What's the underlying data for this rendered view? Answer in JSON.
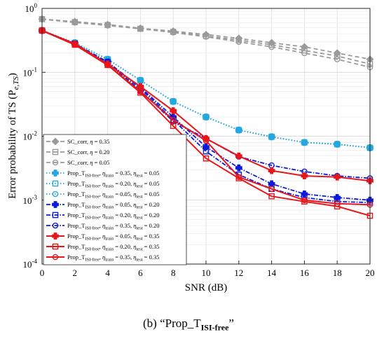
{
  "chart_data": {
    "type": "line",
    "xlabel": "SNR (dB)",
    "ylabel": "Error probability of TS (P",
    "ylabel_sub": "e,TS",
    "ylabel_close": ")",
    "xlim": [
      0,
      20
    ],
    "ylim": [
      0.0001,
      1
    ],
    "yscale": "log",
    "grid": true,
    "legend_position": "bottom-left",
    "x_ticks": [
      0,
      2,
      4,
      6,
      8,
      10,
      12,
      14,
      16,
      18,
      20
    ],
    "x_tick_labels": [
      "0",
      "2",
      "4",
      "6",
      "8",
      "10",
      "12",
      "14",
      "16",
      "18",
      "20"
    ],
    "y_ticks": [
      1,
      0.1,
      0.01,
      0.001,
      0.0001
    ],
    "y_tick_base": "10",
    "y_tick_exponents": [
      "0",
      "-1",
      "-2",
      "-3",
      "-4"
    ],
    "x": [
      0,
      2,
      4,
      6,
      8,
      10,
      12,
      14,
      16,
      18,
      20
    ],
    "series": [
      {
        "label": "SC_corr, η = 0.35",
        "color": "#9a9a9a",
        "dash": "6,4",
        "marker": "diamond",
        "values": [
          0.68,
          0.62,
          0.56,
          0.49,
          0.44,
          0.39,
          0.34,
          0.29,
          0.25,
          0.2,
          0.16
        ]
      },
      {
        "label": "SC_corr, η = 0.20",
        "color": "#9a9a9a",
        "dash": "6,4",
        "marker": "square",
        "values": [
          0.68,
          0.61,
          0.55,
          0.48,
          0.43,
          0.37,
          0.32,
          0.27,
          0.22,
          0.18,
          0.135
        ]
      },
      {
        "label": "SC_corr, η = 0.05",
        "color": "#9a9a9a",
        "dash": "6,4",
        "marker": "circle",
        "values": [
          0.68,
          0.6,
          0.54,
          0.48,
          0.42,
          0.36,
          0.3,
          0.25,
          0.2,
          0.16,
          0.12
        ]
      },
      {
        "label": "Prop_T_ISI-free, η_train = 0.35, η_test = 0.05",
        "color": "#27a7e0",
        "dash": "1.5,2.5",
        "marker": "star",
        "values": [
          0.45,
          0.29,
          0.16,
          0.075,
          0.035,
          0.02,
          0.0125,
          0.0098,
          0.008,
          0.0075,
          0.0066
        ]
      },
      {
        "label": "Prop_T_ISI-free, η_train = 0.20, η_test = 0.05",
        "color": "#27a7e0",
        "dash": "1.5,2.5",
        "marker": "square",
        "values": [
          0.45,
          0.29,
          0.16,
          0.075,
          0.035,
          0.02,
          0.0125,
          0.0098,
          0.008,
          0.0075,
          0.0066
        ]
      },
      {
        "label": "Prop_T_ISI-free, η_train = 0.05, η_test = 0.05",
        "color": "#27a7e0",
        "dash": "1.5,2.5",
        "marker": "circle",
        "values": [
          0.45,
          0.29,
          0.16,
          0.075,
          0.035,
          0.02,
          0.0125,
          0.0098,
          0.008,
          0.0075,
          0.0066
        ]
      },
      {
        "label": "Prop_T_ISI-free, η_train = 0.05, η_test = 0.20",
        "color": "#0a1ad8",
        "dash": "6,2,1.5,2",
        "marker": "star",
        "values": [
          0.45,
          0.28,
          0.145,
          0.058,
          0.02,
          0.0068,
          0.0032,
          0.0018,
          0.00125,
          0.0011,
          0.001
        ]
      },
      {
        "label": "Prop_T_ISI-free, η_train = 0.20, η_test = 0.20",
        "color": "#0a1ad8",
        "dash": "6,2,1.5,2",
        "marker": "square",
        "values": [
          0.45,
          0.28,
          0.145,
          0.056,
          0.018,
          0.0058,
          0.0025,
          0.0015,
          0.0011,
          0.00095,
          0.00092
        ]
      },
      {
        "label": "Prop_T_ISI-free, η_train = 0.35, η_test = 0.20",
        "color": "#0a1ad8",
        "dash": "6,2,1.5,2",
        "marker": "circle",
        "values": [
          0.45,
          0.28,
          0.14,
          0.052,
          0.017,
          0.0092,
          0.0048,
          0.0035,
          0.0028,
          0.0024,
          0.0022
        ]
      },
      {
        "label": "Prop_T_ISI-free, η_train = 0.05, η_test = 0.35",
        "color": "#e8161b",
        "dash": "",
        "marker": "star",
        "values": [
          0.45,
          0.28,
          0.135,
          0.06,
          0.025,
          0.0092,
          0.0049,
          0.0029,
          0.0024,
          0.0023,
          0.002
        ]
      },
      {
        "label": "Prop_T_ISI-free, η_train = 0.20, η_test = 0.35",
        "color": "#e8161b",
        "dash": "",
        "marker": "square",
        "values": [
          0.45,
          0.27,
          0.13,
          0.048,
          0.0145,
          0.0045,
          0.0022,
          0.00115,
          0.00095,
          0.0008,
          0.00057
        ]
      },
      {
        "label": "Prop_T_ISI-free, η_train = 0.35, η_test = 0.35",
        "color": "#e8161b",
        "dash": "",
        "marker": "circle",
        "values": [
          0.45,
          0.27,
          0.13,
          0.05,
          0.018,
          0.0085,
          0.0023,
          0.0015,
          0.001,
          0.00088,
          0.00085
        ]
      }
    ],
    "legend": [
      {
        "segments": [
          [
            "SC_corr, ",
            "n"
          ],
          [
            "η",
            "n"
          ],
          [
            " = 0.35",
            "n"
          ]
        ]
      },
      {
        "segments": [
          [
            "SC_corr, ",
            "n"
          ],
          [
            "η",
            "n"
          ],
          [
            " = 0.20",
            "n"
          ]
        ]
      },
      {
        "segments": [
          [
            "SC_corr, ",
            "n"
          ],
          [
            "η",
            "n"
          ],
          [
            " = 0.05",
            "n"
          ]
        ]
      },
      {
        "segments": [
          [
            "Prop_T",
            "n"
          ],
          [
            "ISI-free",
            "sub"
          ],
          [
            ", ",
            "n"
          ],
          [
            "η",
            "n"
          ],
          [
            "train",
            "sub"
          ],
          [
            " = 0.35, ",
            "n"
          ],
          [
            "η",
            "n"
          ],
          [
            "test",
            "sub"
          ],
          [
            " = 0.05",
            "n"
          ]
        ]
      },
      {
        "segments": [
          [
            "Prop_T",
            "n"
          ],
          [
            "ISI-free",
            "sub"
          ],
          [
            ", ",
            "n"
          ],
          [
            "η",
            "n"
          ],
          [
            "train",
            "sub"
          ],
          [
            " = 0.20, ",
            "n"
          ],
          [
            "η",
            "n"
          ],
          [
            "test",
            "sub"
          ],
          [
            " = 0.05",
            "n"
          ]
        ]
      },
      {
        "segments": [
          [
            "Prop_T",
            "n"
          ],
          [
            "ISI-free",
            "sub"
          ],
          [
            ", ",
            "n"
          ],
          [
            "η",
            "n"
          ],
          [
            "train",
            "sub"
          ],
          [
            " = 0.05, ",
            "n"
          ],
          [
            "η",
            "n"
          ],
          [
            "test",
            "sub"
          ],
          [
            " = 0.05",
            "n"
          ]
        ]
      },
      {
        "segments": [
          [
            "Prop_T",
            "n"
          ],
          [
            "ISI-free",
            "sub"
          ],
          [
            ", ",
            "n"
          ],
          [
            "η",
            "n"
          ],
          [
            "train",
            "sub"
          ],
          [
            " = 0.05, ",
            "n"
          ],
          [
            "η",
            "n"
          ],
          [
            "test",
            "sub"
          ],
          [
            " = 0.20",
            "n"
          ]
        ]
      },
      {
        "segments": [
          [
            "Prop_T",
            "n"
          ],
          [
            "ISI-free",
            "sub"
          ],
          [
            ", ",
            "n"
          ],
          [
            "η",
            "n"
          ],
          [
            "train",
            "sub"
          ],
          [
            " = 0.20, ",
            "n"
          ],
          [
            "η",
            "n"
          ],
          [
            "test",
            "sub"
          ],
          [
            " = 0.20",
            "n"
          ]
        ]
      },
      {
        "segments": [
          [
            "Prop_T",
            "n"
          ],
          [
            "ISI-free",
            "sub"
          ],
          [
            ", ",
            "n"
          ],
          [
            "η",
            "n"
          ],
          [
            "train",
            "sub"
          ],
          [
            " = 0.35, ",
            "n"
          ],
          [
            "η",
            "n"
          ],
          [
            "test",
            "sub"
          ],
          [
            " = 0.20",
            "n"
          ]
        ]
      },
      {
        "segments": [
          [
            "Prop_T",
            "n"
          ],
          [
            "ISI-free",
            "sub"
          ],
          [
            ", ",
            "n"
          ],
          [
            "η",
            "n"
          ],
          [
            "train",
            "sub"
          ],
          [
            " = 0.05, ",
            "n"
          ],
          [
            "η",
            "n"
          ],
          [
            "test",
            "sub"
          ],
          [
            " = 0.35",
            "n"
          ]
        ]
      },
      {
        "segments": [
          [
            "Prop_T",
            "n"
          ],
          [
            "ISI-free",
            "sub"
          ],
          [
            ", ",
            "n"
          ],
          [
            "η",
            "n"
          ],
          [
            "train",
            "sub"
          ],
          [
            " = 0.20, ",
            "n"
          ],
          [
            "η",
            "n"
          ],
          [
            "test",
            "sub"
          ],
          [
            " = 0.35",
            "n"
          ]
        ]
      },
      {
        "segments": [
          [
            "Prop_T",
            "n"
          ],
          [
            "ISI-free",
            "sub"
          ],
          [
            ", ",
            "n"
          ],
          [
            "η",
            "n"
          ],
          [
            "train",
            "sub"
          ],
          [
            " = 0.35, ",
            "n"
          ],
          [
            "η",
            "n"
          ],
          [
            "test",
            "sub"
          ],
          [
            " = 0.35",
            "n"
          ]
        ]
      }
    ]
  },
  "caption": {
    "prefix": "(b) “Prop_T",
    "sub": "ISI-free",
    "suffix": "”"
  }
}
